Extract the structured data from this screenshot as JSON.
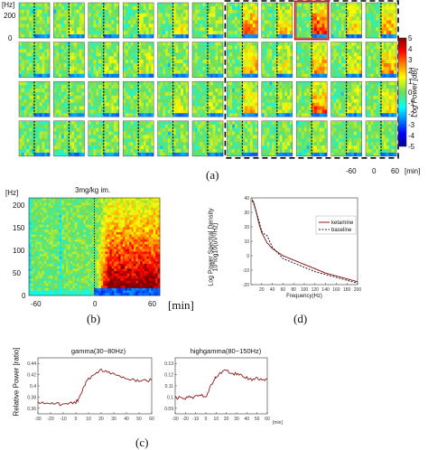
{
  "panel_a": {
    "y_unit": "[Hz]",
    "y_ticks": [
      "200",
      "0"
    ],
    "colorbar_ticks": [
      "5",
      "4",
      "3",
      "2",
      "1",
      "0",
      "-1",
      "-2",
      "-3",
      "-4",
      "-5"
    ],
    "colorbar_label": "Log Power [dB]",
    "x_ticks": [
      "-60",
      "0",
      "60"
    ],
    "x_unit": "[min]",
    "caption": "(a)"
  },
  "panel_b": {
    "title": "3mg/kg im.",
    "y_unit": "[Hz]",
    "y_ticks": [
      "200",
      "150",
      "100",
      "50",
      "0"
    ],
    "x_ticks": [
      "-60",
      "0",
      "60"
    ],
    "x_unit": "[min]",
    "caption": "(b)"
  },
  "panel_c": {
    "caption": "(c)",
    "ylabel": "Relative Power [ratio]",
    "x_unit": "[min]"
  },
  "panel_d": {
    "caption": "(d)",
    "ylabel_line1": "Log Power Spectral Density",
    "ylabel_line2": "10*log10(uV²/Hz)",
    "xlabel": "Frequency(Hz)",
    "legend": [
      "ketamine",
      "baseline"
    ]
  },
  "chart_data": [
    {
      "type": "heatmap",
      "title": "",
      "grid_rows": 4,
      "grid_cols": 11,
      "highlighted_cells": [
        [
          0,
          8
        ]
      ],
      "dashed_group": {
        "rows": [
          0,
          3
        ],
        "cols": [
          6,
          10
        ]
      },
      "ylabel": "[Hz]",
      "ylim": [
        0,
        200
      ],
      "xlabel": "[min]",
      "xticks": [
        -60,
        0,
        60
      ],
      "colorbar": {
        "label": "Log Power [dB]",
        "range": [
          -5,
          5
        ],
        "colormap": "jet"
      }
    },
    {
      "type": "heatmap",
      "title": "3mg/kg im.",
      "ylabel": "[Hz]",
      "ylim": [
        0,
        200
      ],
      "yticks": [
        0,
        50,
        100,
        150,
        200
      ],
      "xlabel": "[min]",
      "xticks": [
        -60,
        0,
        60
      ],
      "colormap": "jet"
    },
    {
      "type": "line",
      "title": "gamma(30~80Hz)",
      "ylabel": "Relative Power [ratio]",
      "xlabel": "[min]",
      "xticks": [
        -30,
        -20,
        -10,
        0,
        10,
        20,
        30,
        40,
        50,
        60
      ],
      "yticks": [
        0.36,
        0.38,
        0.4,
        0.42,
        0.44
      ],
      "xlim": [
        -30,
        60
      ],
      "ylim": [
        0.35,
        0.45
      ],
      "series": [
        {
          "color": "#8b1a1a",
          "x": [
            -30,
            -25,
            -20,
            -15,
            -10,
            -5,
            0,
            2,
            5,
            8,
            10,
            15,
            20,
            25,
            30,
            35,
            40,
            45,
            50,
            55,
            60
          ],
          "y": [
            0.37,
            0.368,
            0.369,
            0.367,
            0.368,
            0.37,
            0.371,
            0.376,
            0.39,
            0.405,
            0.412,
            0.42,
            0.428,
            0.424,
            0.422,
            0.415,
            0.413,
            0.411,
            0.409,
            0.409,
            0.41
          ]
        }
      ]
    },
    {
      "type": "line",
      "title": "highgamma(80~150Hz)",
      "xlabel": "[min]",
      "xticks": [
        -30,
        -20,
        -10,
        0,
        10,
        20,
        30,
        40,
        50,
        60
      ],
      "yticks": [
        0.09,
        0.1,
        0.11,
        0.12,
        0.13
      ],
      "xlim": [
        -30,
        60
      ],
      "ylim": [
        0.085,
        0.135
      ],
      "series": [
        {
          "color": "#8b1a1a",
          "x": [
            -30,
            -25,
            -20,
            -15,
            -10,
            -5,
            0,
            2,
            5,
            8,
            10,
            15,
            20,
            25,
            30,
            35,
            40,
            45,
            50,
            55,
            60
          ],
          "y": [
            0.1,
            0.099,
            0.099,
            0.1,
            0.1,
            0.101,
            0.101,
            0.104,
            0.11,
            0.116,
            0.119,
            0.121,
            0.124,
            0.121,
            0.121,
            0.12,
            0.117,
            0.116,
            0.117,
            0.115,
            0.116
          ]
        }
      ]
    },
    {
      "type": "line",
      "xlabel": "Frequency(Hz)",
      "ylabel": "Log Power Spectral Density 10*log10(uV²/Hz)",
      "xticks": [
        20,
        40,
        60,
        80,
        100,
        120,
        140,
        160,
        180,
        200
      ],
      "yticks": [
        -20,
        -10,
        0,
        10,
        20,
        30,
        40
      ],
      "xlim": [
        0,
        200
      ],
      "ylim": [
        -20,
        40
      ],
      "legend": "top-right",
      "series": [
        {
          "name": "ketamine",
          "color": "#8b1a1a",
          "style": "solid",
          "x": [
            2,
            5,
            10,
            15,
            20,
            30,
            40,
            60,
            80,
            100,
            120,
            140,
            160,
            180,
            200
          ],
          "y": [
            39,
            37,
            30,
            22,
            16,
            9,
            5,
            0,
            -3,
            -6,
            -9,
            -12,
            -14,
            -16,
            -18
          ]
        },
        {
          "name": "baseline",
          "color": "#222222",
          "style": "dashed",
          "x": [
            2,
            5,
            10,
            15,
            20,
            25,
            30,
            40,
            60,
            80,
            100,
            120,
            140,
            160,
            180,
            200
          ],
          "y": [
            38,
            36,
            30,
            24,
            17,
            15,
            14,
            6,
            -2,
            -5,
            -8,
            -11,
            -13,
            -15,
            -17,
            -19
          ]
        }
      ]
    }
  ]
}
